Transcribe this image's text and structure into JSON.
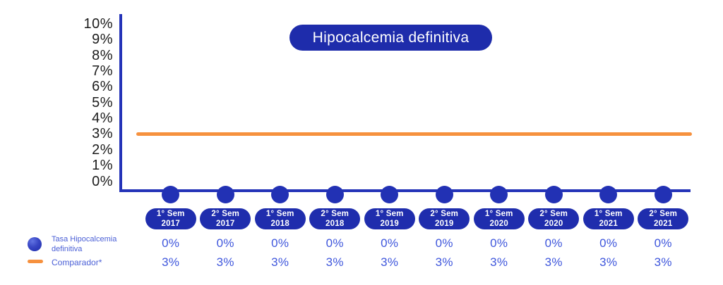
{
  "title": "Hipocalcemia definitiva",
  "colors": {
    "brand_navy": "#1f2dad",
    "marker_blue": "#2231b4",
    "axis_blue": "#2433b8",
    "comparator_orange": "#f6913e",
    "value_text_blue": "#3e56dc",
    "legend_text_blue": "#4a5fd6",
    "ytick_text": "#1c1c1c"
  },
  "y_axis": {
    "ticks": [
      "10%",
      "9%",
      "8%",
      "7%",
      "6%",
      "5%",
      "4%",
      "3%",
      "2%",
      "1%",
      "0%"
    ]
  },
  "x_axis": {
    "pills": [
      {
        "line1": "1° Sem",
        "line2": "2017"
      },
      {
        "line1": "2° Sem",
        "line2": "2017"
      },
      {
        "line1": "1° Sem",
        "line2": "2018"
      },
      {
        "line1": "2° Sem",
        "line2": "2018"
      },
      {
        "line1": "1° Sem",
        "line2": "2019"
      },
      {
        "line1": "2° Sem",
        "line2": "2019"
      },
      {
        "line1": "1° Sem",
        "line2": "2020"
      },
      {
        "line1": "2° Sem",
        "line2": "2020"
      },
      {
        "line1": "1° Sem",
        "line2": "2021"
      },
      {
        "line1": "2° Sem",
        "line2": "2021"
      }
    ]
  },
  "rows": {
    "tasa": [
      "0%",
      "0%",
      "0%",
      "0%",
      "0%",
      "0%",
      "0%",
      "0%",
      "0%",
      "0%"
    ],
    "comparador": [
      "3%",
      "3%",
      "3%",
      "3%",
      "3%",
      "3%",
      "3%",
      "3%",
      "3%",
      "3%"
    ]
  },
  "legend": {
    "tasa": {
      "line1": "Tasa Hipocalcemia",
      "line2": "definitiva"
    },
    "comparador": {
      "label": "Comparador*"
    }
  },
  "chart_data": {
    "type": "line",
    "title": "Hipocalcemia definitiva",
    "categories": [
      "1° Sem 2017",
      "2° Sem 2017",
      "1° Sem 2018",
      "2° Sem 2018",
      "1° Sem 2019",
      "2° Sem 2019",
      "1° Sem 2020",
      "2° Sem 2020",
      "1° Sem 2021",
      "2° Sem 2021"
    ],
    "series": [
      {
        "name": "Tasa Hipocalcemia definitiva",
        "style": "scatter-markers-on-baseline",
        "color": "#2231b4",
        "unit": "%",
        "values": [
          0,
          0,
          0,
          0,
          0,
          0,
          0,
          0,
          0,
          0
        ]
      },
      {
        "name": "Comparador*",
        "style": "horizontal-line",
        "color": "#f6913e",
        "unit": "%",
        "values": [
          3,
          3,
          3,
          3,
          3,
          3,
          3,
          3,
          3,
          3
        ]
      }
    ],
    "xlabel": "",
    "ylabel": "",
    "ylim": [
      0,
      10
    ],
    "ytick_values": [
      0,
      1,
      2,
      3,
      4,
      5,
      6,
      7,
      8,
      9,
      10
    ],
    "grid": false,
    "legend_position": "bottom-left",
    "value_table_rows": [
      "0% per semester (Tasa)",
      "3% per semester (Comparador)"
    ]
  }
}
